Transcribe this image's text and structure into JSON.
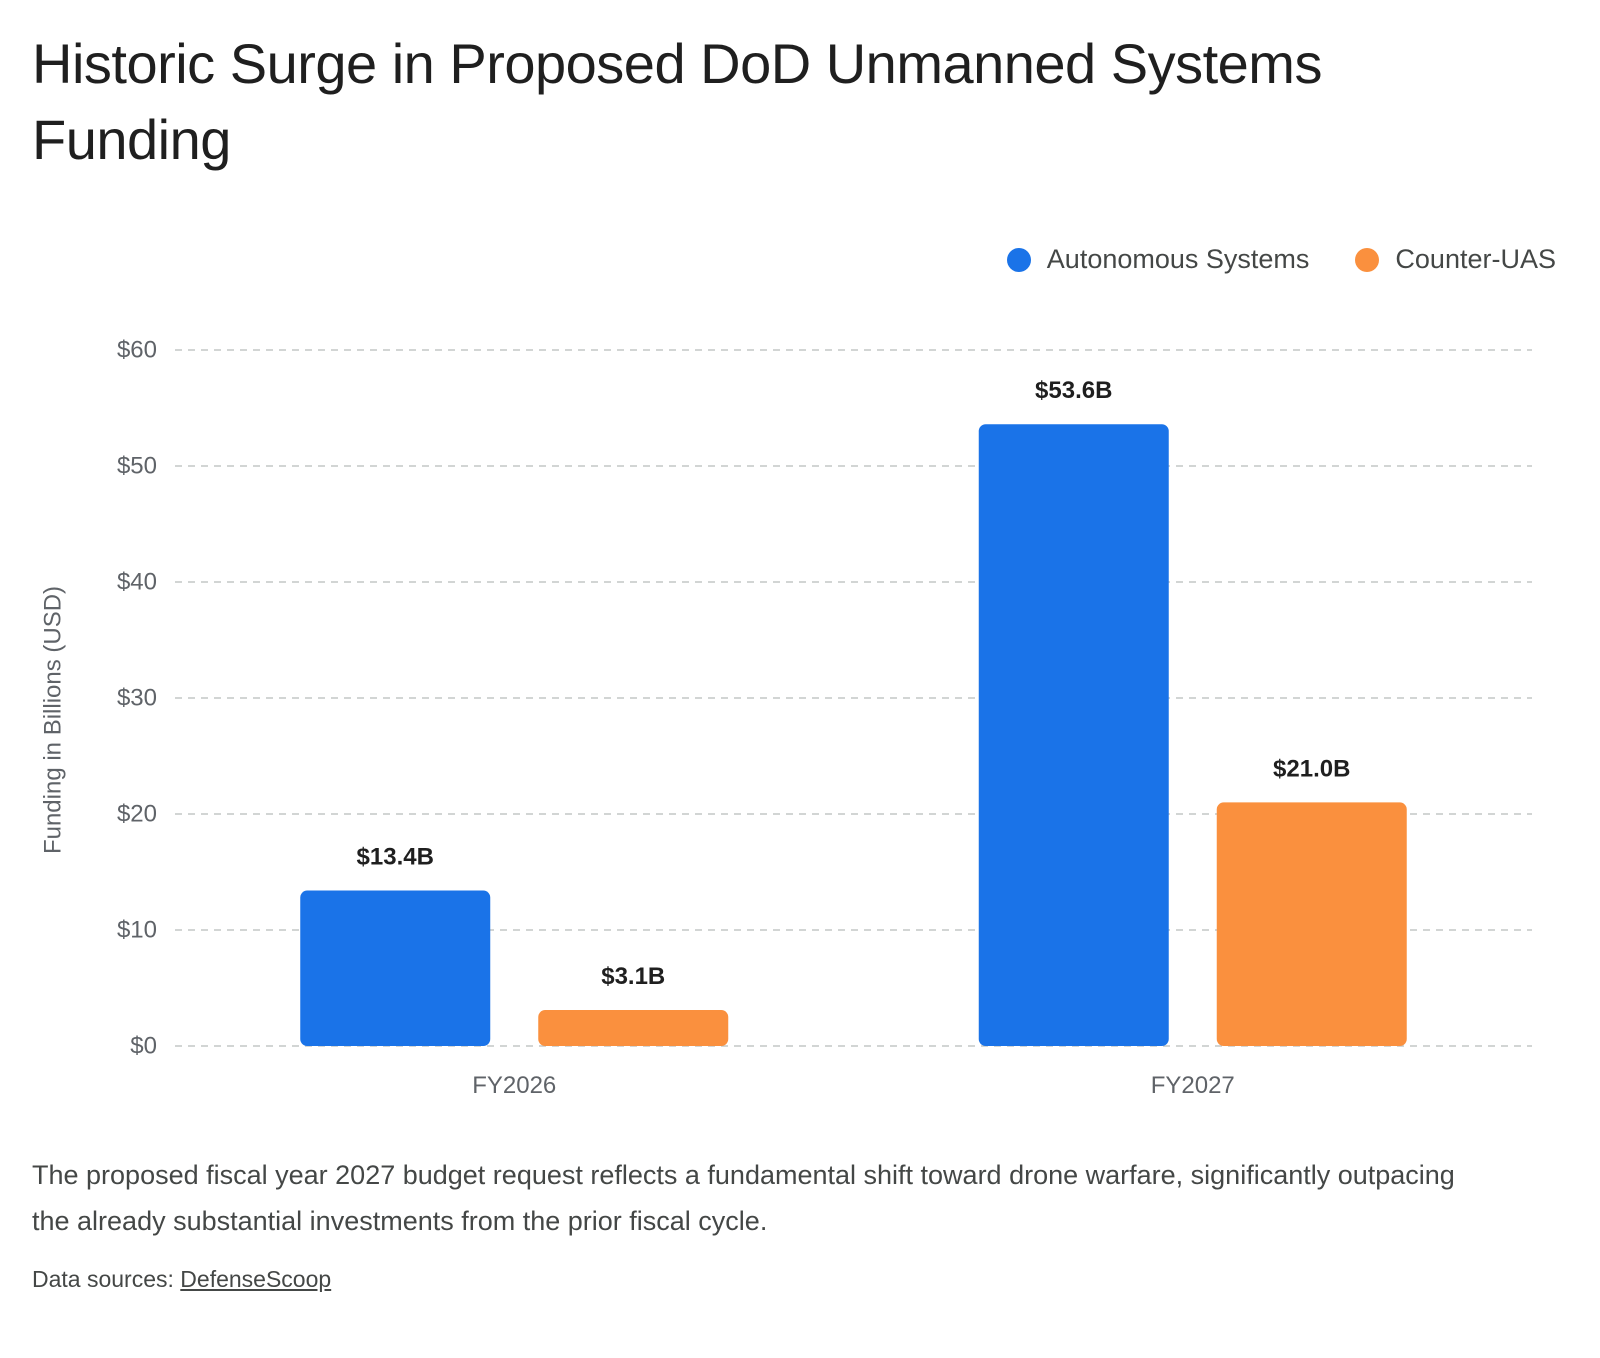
{
  "title": "Historic Surge in Proposed DoD Unmanned Systems Funding",
  "description": "The proposed fiscal year 2027 budget request reflects a fundamental shift toward drone warfare, significantly outpacing the already substantial investments from the prior fiscal cycle.",
  "sources": {
    "label": "Data sources:",
    "link_text": "DefenseScoop"
  },
  "colors": {
    "autonomous": "#1a73e8",
    "counter_uas": "#fa903e",
    "grid": "#c4c7c5",
    "axis_text": "#5f6368",
    "value_label": "#1f1f1f"
  },
  "chart_data": {
    "type": "bar",
    "categories": [
      "FY2026",
      "FY2027"
    ],
    "series": [
      {
        "name": "Autonomous Systems",
        "values": [
          13.4,
          53.6
        ],
        "labels": [
          "$13.4B",
          "$53.6B"
        ]
      },
      {
        "name": "Counter-UAS",
        "values": [
          3.1,
          21.0
        ],
        "labels": [
          "$3.1B",
          "$21.0B"
        ]
      }
    ],
    "xlabel": "",
    "ylabel": "Funding in Billions (USD)",
    "ylim": [
      0,
      60
    ],
    "yticks": [
      0,
      10,
      20,
      30,
      40,
      50,
      60
    ],
    "ytick_labels": [
      "$0",
      "$10",
      "$20",
      "$30",
      "$40",
      "$50",
      "$60"
    ],
    "grid": true,
    "legend_position": "top-right"
  }
}
